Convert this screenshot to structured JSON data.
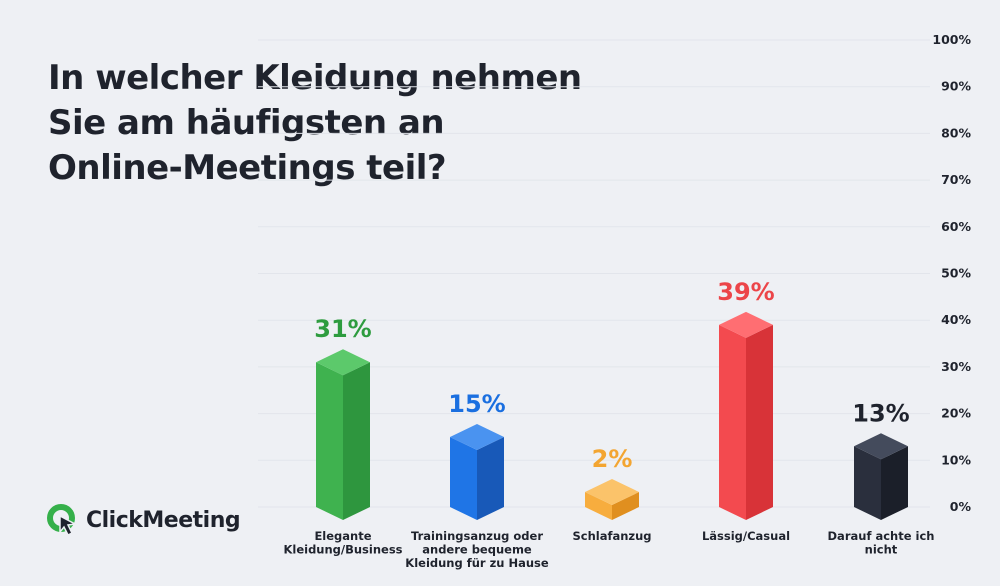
{
  "title_lines": [
    "In welcher Kleidung nehmen",
    "Sie am häufigsten an",
    "Online-Meetings teil?"
  ],
  "logo": {
    "text": "ClickMeeting",
    "icon": "clickmeeting-logo-icon"
  },
  "colors": {
    "background": "#eef0f4",
    "tick_text": "#1f232d",
    "category_text": "#1f232d"
  },
  "chart_data": {
    "type": "bar",
    "title": "In welcher Kleidung nehmen Sie am häufigsten an Online-Meetings teil?",
    "ylim": [
      0,
      100
    ],
    "ticks": [
      "100%",
      "90%",
      "80%",
      "70%",
      "60%",
      "50%",
      "40%",
      "30%",
      "20%",
      "10%",
      "0%"
    ],
    "tick_values": [
      100,
      90,
      80,
      70,
      60,
      50,
      40,
      30,
      20,
      10,
      0
    ],
    "categories": [
      [
        "Elegante",
        "Kleidung/Business"
      ],
      [
        "Trainingsanzug oder",
        "andere bequeme",
        "Kleidung für zu Hause"
      ],
      [
        "Schlafanzug"
      ],
      [
        "Lässig/Casual"
      ],
      [
        "Darauf achte ich",
        "nicht"
      ]
    ],
    "values": [
      31,
      15,
      2,
      39,
      13
    ],
    "value_labels": [
      "31%",
      "15%",
      "2%",
      "39%",
      "13%"
    ],
    "bar_colors": [
      {
        "front": "#3fb24f",
        "side": "#2e963e",
        "top": "#5cc96b",
        "label": "#2e9c3f"
      },
      {
        "front": "#1f75e6",
        "side": "#1859b8",
        "top": "#4a93f0",
        "label": "#1a6fe0"
      },
      {
        "front": "#f7ad3e",
        "side": "#e08f1f",
        "top": "#fbc36a",
        "label": "#f3a531"
      },
      {
        "front": "#f34a4f",
        "side": "#d83338",
        "top": "#ff6e72",
        "label": "#ec4549"
      },
      {
        "front": "#2a2f3d",
        "side": "#1b1f29",
        "top": "#444b5c",
        "label": "#1f232d"
      }
    ],
    "grid": true,
    "legend": "none"
  }
}
